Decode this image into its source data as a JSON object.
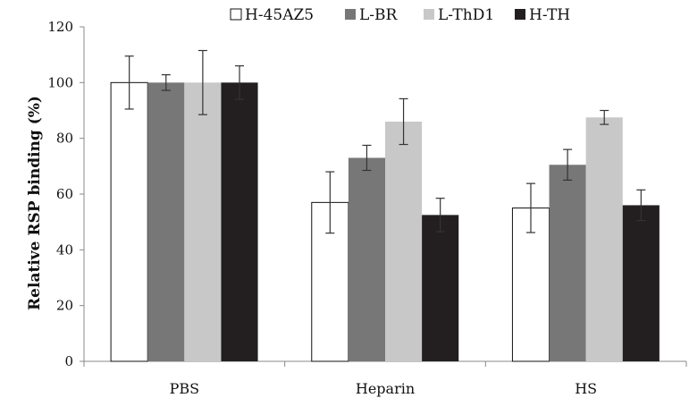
{
  "chart_data": {
    "type": "bar",
    "categories": [
      "PBS",
      "Heparin",
      "HS"
    ],
    "series": [
      {
        "name": "H-45AZ5",
        "color": "#ffffff",
        "values": [
          100,
          57,
          55
        ],
        "errors": [
          9.5,
          11,
          8.8
        ]
      },
      {
        "name": "L-BR",
        "color": "#777777",
        "values": [
          100,
          73,
          70.5
        ],
        "errors": [
          2.8,
          4.5,
          5.5
        ]
      },
      {
        "name": "L-ThD1",
        "color": "#c8c8c8",
        "values": [
          100,
          86,
          87.5
        ],
        "errors": [
          11.5,
          8.2,
          2.5
        ]
      },
      {
        "name": "H-TH",
        "color": "#231f20",
        "values": [
          100,
          52.5,
          56
        ],
        "errors": [
          6,
          6,
          5.5
        ]
      }
    ],
    "title": "",
    "xlabel": "",
    "ylabel": "Relative RSP binding (%)",
    "ylim": [
      0,
      120
    ],
    "yticks": [
      0,
      20,
      40,
      60,
      80,
      100,
      120
    ],
    "grid": false,
    "legend": "top"
  }
}
